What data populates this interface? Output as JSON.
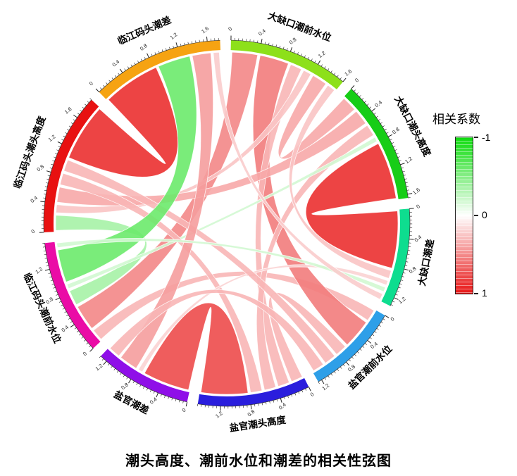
{
  "title": "潮头高度、潮前水位和潮差的相关性弦图",
  "legend": {
    "title": "相关系数",
    "tick_labels": [
      "-1",
      "0",
      "1"
    ],
    "color_negative": "#0ddc0d",
    "color_zero": "#ffffff",
    "color_positive": "#e81616"
  },
  "chart_data": {
    "type": "chord",
    "title": "潮头高度、潮前水位和潮差的相关性弦图",
    "legend_title": "相关系数",
    "colormap": {
      "min": -1,
      "mid": 0,
      "max": 1,
      "min_color": "#0ddc0d",
      "mid_color": "#ffffff",
      "max_color": "#e81616"
    },
    "axis": {
      "major_tick": 0.4,
      "minor_tick": 0.05,
      "tick_label_rotation": -38
    },
    "sectors": [
      {
        "id": "dqk-qsw",
        "label": "大缺口潮前水位",
        "color": "#8de01a"
      },
      {
        "id": "dqk-ctg",
        "label": "大缺口潮头高度",
        "color": "#17cd17"
      },
      {
        "id": "dqk-cc",
        "label": "大缺口潮差",
        "color": "#0edd8f"
      },
      {
        "id": "yg-qsw",
        "label": "盐官潮前水位",
        "color": "#2e9fe8"
      },
      {
        "id": "yg-ctg",
        "label": "盐官潮头高度",
        "color": "#2a1edd"
      },
      {
        "id": "yg-cc",
        "label": "盐官潮差",
        "color": "#8f0fe8"
      },
      {
        "id": "lj-qsw",
        "label": "临江码头潮前水位",
        "color": "#ea0ca6"
      },
      {
        "id": "lj-ctg",
        "label": "临江码头潮头高度",
        "color": "#e81111"
      },
      {
        "id": "lj-cc",
        "label": "临江码头潮差",
        "color": "#f6a312"
      }
    ],
    "links": [
      {
        "source": 3,
        "target": 6,
        "r": 0.2
      },
      {
        "source": 0,
        "target": 6,
        "r": 0.4
      },
      {
        "source": 0,
        "target": 3,
        "r": 0.45
      },
      {
        "source": 3,
        "target": 4,
        "r": 0.2
      },
      {
        "source": 0,
        "target": 4,
        "r": 0.2
      },
      {
        "source": 6,
        "target": 7,
        "r": -0.25
      },
      {
        "source": 0,
        "target": 7,
        "r": 0.15
      },
      {
        "source": 0,
        "target": 1,
        "r": 0.25
      },
      {
        "source": 1,
        "target": 7,
        "r": 0.25
      },
      {
        "source": 1,
        "target": 4,
        "r": 0.2
      },
      {
        "source": 1,
        "target": 6,
        "r": -0.1
      },
      {
        "source": 1,
        "target": 2,
        "r": 0.85
      },
      {
        "source": 0,
        "target": 2,
        "r": 0.15
      },
      {
        "source": 4,
        "target": 7,
        "r": 0.2
      },
      {
        "source": 4,
        "target": 5,
        "r": 0.7
      },
      {
        "source": 2,
        "target": 5,
        "r": 0.1
      },
      {
        "source": 3,
        "target": 7,
        "r": 0.2
      },
      {
        "source": 7,
        "target": 8,
        "r": 0.85
      },
      {
        "source": 6,
        "target": 8,
        "r": -0.5
      },
      {
        "source": 5,
        "target": 8,
        "r": 0.3
      },
      {
        "source": 2,
        "target": 6,
        "r": -0.1
      },
      {
        "source": 2,
        "target": 8,
        "r": 0.12
      },
      {
        "source": 3,
        "target": 5,
        "r": 0.2
      }
    ]
  }
}
